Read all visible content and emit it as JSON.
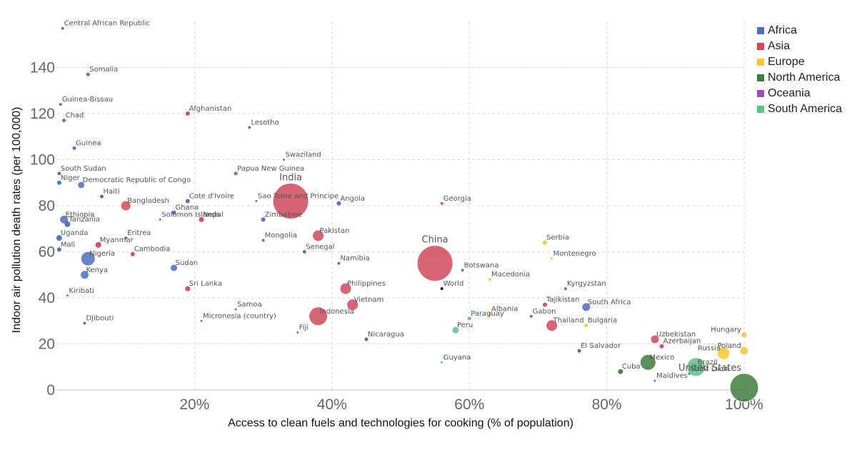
{
  "chart_data": {
    "type": "scatter",
    "title": "",
    "xlabel": "Access to clean fuels and technologies for cooking (% of population)",
    "ylabel": "Indoor air pollution death rates (per 100,000)",
    "xlim": [
      0,
      100
    ],
    "ylim": [
      0,
      160
    ],
    "x_ticks": [
      "20%",
      "40%",
      "60%",
      "80%",
      "100%"
    ],
    "y_ticks": [
      "0",
      "20",
      "40",
      "60",
      "80",
      "100",
      "120",
      "140"
    ],
    "grid": true,
    "legend_position": "top-right",
    "legend": [
      {
        "name": "Africa",
        "color": "#4C6EBE"
      },
      {
        "name": "Asia",
        "color": "#D1485A"
      },
      {
        "name": "Europe",
        "color": "#F7C831"
      },
      {
        "name": "North America",
        "color": "#3D7D3E"
      },
      {
        "name": "Oceania",
        "color": "#9B4EC1"
      },
      {
        "name": "South America",
        "color": "#5DC185"
      }
    ],
    "points": [
      {
        "label": "Central African Republic",
        "x": 0.8,
        "y": 157,
        "region": "Africa",
        "size": 2
      },
      {
        "label": "Somalia",
        "x": 4.5,
        "y": 137,
        "region": "Africa",
        "size": 2.5
      },
      {
        "label": "Guinea-Bissau",
        "x": 0.5,
        "y": 124,
        "region": "Africa",
        "size": 2
      },
      {
        "label": "Afghanistan",
        "x": 19,
        "y": 120,
        "region": "Asia",
        "size": 3
      },
      {
        "label": "Chad",
        "x": 1,
        "y": 117,
        "region": "Africa",
        "size": 2.5
      },
      {
        "label": "Lesotho",
        "x": 28,
        "y": 114,
        "region": "Africa",
        "size": 2
      },
      {
        "label": "Guinea",
        "x": 2.5,
        "y": 105,
        "region": "Africa",
        "size": 2.5
      },
      {
        "label": "Swaziland",
        "x": 33,
        "y": 100,
        "region": "Africa",
        "size": 1.5
      },
      {
        "label": "Papua New Guinea",
        "x": 26,
        "y": 94,
        "region": "Oceania",
        "size": 2.5
      },
      {
        "label": "South Sudan",
        "x": 0.3,
        "y": 94,
        "region": "Africa",
        "size": 2.5
      },
      {
        "label": "Niger",
        "x": 0.3,
        "y": 90,
        "region": "Africa",
        "size": 3
      },
      {
        "label": "Democratic Republic of Congo",
        "x": 3.5,
        "y": 89,
        "region": "Africa",
        "size": 5
      },
      {
        "label": "Haiti",
        "x": 6.5,
        "y": 84,
        "region": "North America",
        "size": 2.5
      },
      {
        "label": "India",
        "x": 34,
        "y": 82,
        "region": "Asia",
        "size": 25
      },
      {
        "label": "Bangladesh",
        "x": 10,
        "y": 80,
        "region": "Asia",
        "size": 7
      },
      {
        "label": "Cote d'Ivoire",
        "x": 19,
        "y": 82,
        "region": "Africa",
        "size": 3
      },
      {
        "label": "Sao Tome and Principe",
        "x": 29,
        "y": 82,
        "region": "Africa",
        "size": 1.5
      },
      {
        "label": "Angola",
        "x": 41,
        "y": 81,
        "region": "Africa",
        "size": 3
      },
      {
        "label": "Georgia",
        "x": 56,
        "y": 81,
        "region": "Asia",
        "size": 2
      },
      {
        "label": "Ghana",
        "x": 17,
        "y": 77,
        "region": "Africa",
        "size": 3
      },
      {
        "label": "Zimbabwe",
        "x": 30,
        "y": 74,
        "region": "Africa",
        "size": 3
      },
      {
        "label": "Ethiopia",
        "x": 1,
        "y": 74,
        "region": "Africa",
        "size": 6
      },
      {
        "label": "Solomon Islands",
        "x": 15,
        "y": 74,
        "region": "Oceania",
        "size": 1.5
      },
      {
        "label": "Tanzania",
        "x": 1.5,
        "y": 72,
        "region": "Africa",
        "size": 4
      },
      {
        "label": "Nepal",
        "x": 21,
        "y": 74,
        "region": "Asia",
        "size": 3.5
      },
      {
        "label": "Pakistan",
        "x": 38,
        "y": 67,
        "region": "Asia",
        "size": 8
      },
      {
        "label": "Uganda",
        "x": 0.3,
        "y": 66,
        "region": "Africa",
        "size": 4
      },
      {
        "label": "Eritrea",
        "x": 10,
        "y": 66,
        "region": "Africa",
        "size": 2
      },
      {
        "label": "Mongolia",
        "x": 30,
        "y": 65,
        "region": "Asia",
        "size": 2
      },
      {
        "label": "Myanmar",
        "x": 6,
        "y": 63,
        "region": "Asia",
        "size": 4
      },
      {
        "label": "Mali",
        "x": 0.3,
        "y": 61,
        "region": "Africa",
        "size": 3
      },
      {
        "label": "Cambodia",
        "x": 11,
        "y": 59,
        "region": "Asia",
        "size": 3
      },
      {
        "label": "Senegal",
        "x": 36,
        "y": 60,
        "region": "Africa",
        "size": 2.5
      },
      {
        "label": "Serbia",
        "x": 71,
        "y": 64,
        "region": "Europe",
        "size": 3
      },
      {
        "label": "Montenegro",
        "x": 72,
        "y": 57,
        "region": "Europe",
        "size": 1.5
      },
      {
        "label": "Nigeria",
        "x": 4.5,
        "y": 57,
        "region": "Africa",
        "size": 10
      },
      {
        "label": "Namibia",
        "x": 41,
        "y": 55,
        "region": "Africa",
        "size": 2
      },
      {
        "label": "China",
        "x": 55,
        "y": 55,
        "region": "Asia",
        "size": 25
      },
      {
        "label": "Sudan",
        "x": 17,
        "y": 53,
        "region": "Africa",
        "size": 5
      },
      {
        "label": "Botswana",
        "x": 59,
        "y": 52,
        "region": "Africa",
        "size": 2
      },
      {
        "label": "Kenya",
        "x": 4,
        "y": 50,
        "region": "Africa",
        "size": 6
      },
      {
        "label": "Macedonia",
        "x": 63,
        "y": 48,
        "region": "Europe",
        "size": 2
      },
      {
        "label": "Sri Lanka",
        "x": 19,
        "y": 44,
        "region": "Asia",
        "size": 3.5
      },
      {
        "label": "Philippines",
        "x": 42,
        "y": 44,
        "region": "Asia",
        "size": 8
      },
      {
        "label": "World",
        "x": 56,
        "y": 44,
        "region": "World",
        "size": 2
      },
      {
        "label": "Kyrgyzstan",
        "x": 74,
        "y": 44,
        "region": "Asia",
        "size": 2
      },
      {
        "label": "Kiribati",
        "x": 1.5,
        "y": 41,
        "region": "Oceania",
        "size": 1.5
      },
      {
        "label": "Vietnam",
        "x": 43,
        "y": 37,
        "region": "Asia",
        "size": 8
      },
      {
        "label": "Tajikistan",
        "x": 71,
        "y": 37,
        "region": "Asia",
        "size": 3
      },
      {
        "label": "South Africa",
        "x": 77,
        "y": 36,
        "region": "Africa",
        "size": 6
      },
      {
        "label": "Samoa",
        "x": 26,
        "y": 35,
        "region": "Oceania",
        "size": 1.5
      },
      {
        "label": "Albania",
        "x": 63,
        "y": 33,
        "region": "Europe",
        "size": 2.5
      },
      {
        "label": "Gabon",
        "x": 69,
        "y": 32,
        "region": "Africa",
        "size": 2
      },
      {
        "label": "Indonesia",
        "x": 38,
        "y": 32,
        "region": "Asia",
        "size": 13
      },
      {
        "label": "Paraguay",
        "x": 60,
        "y": 31,
        "region": "South America",
        "size": 2.5
      },
      {
        "label": "Micronesia (country)",
        "x": 21,
        "y": 30,
        "region": "Oceania",
        "size": 1.5
      },
      {
        "label": "Djibouti",
        "x": 4,
        "y": 29,
        "region": "Africa",
        "size": 2
      },
      {
        "label": "Thailand",
        "x": 72,
        "y": 28,
        "region": "Asia",
        "size": 8
      },
      {
        "label": "Bulgaria",
        "x": 77,
        "y": 28,
        "region": "Europe",
        "size": 2.5
      },
      {
        "label": "Peru",
        "x": 58,
        "y": 26,
        "region": "South America",
        "size": 5
      },
      {
        "label": "Fiji",
        "x": 35,
        "y": 25,
        "region": "Oceania",
        "size": 1.5
      },
      {
        "label": "Nicaragua",
        "x": 45,
        "y": 22,
        "region": "North America",
        "size": 2.5
      },
      {
        "label": "Uzbekistan",
        "x": 87,
        "y": 22,
        "region": "Asia",
        "size": 6
      },
      {
        "label": "Hungary",
        "x": 100,
        "y": 24,
        "region": "Europe",
        "size": 3.5
      },
      {
        "label": "Azerbaijan",
        "x": 88,
        "y": 19,
        "region": "Asia",
        "size": 3
      },
      {
        "label": "Poland",
        "x": 100,
        "y": 17,
        "region": "Europe",
        "size": 6
      },
      {
        "label": "El Salvador",
        "x": 76,
        "y": 17,
        "region": "North America",
        "size": 2.5
      },
      {
        "label": "Russia",
        "x": 97,
        "y": 16,
        "region": "Europe",
        "size": 9
      },
      {
        "label": "Guyana",
        "x": 56,
        "y": 12,
        "region": "South America",
        "size": 1.5
      },
      {
        "label": "Mexico",
        "x": 86,
        "y": 12,
        "region": "North America",
        "size": 11
      },
      {
        "label": "Brazil",
        "x": 93,
        "y": 10,
        "region": "South America",
        "size": 13
      },
      {
        "label": "Cuba",
        "x": 82,
        "y": 8,
        "region": "North America",
        "size": 3.5
      },
      {
        "label": "Saint Lucia",
        "x": 92,
        "y": 7,
        "region": "North America",
        "size": 1.5
      },
      {
        "label": "United States",
        "x": 100,
        "y": 1,
        "region": "North America",
        "size": 20
      },
      {
        "label": "Maldives",
        "x": 87,
        "y": 4,
        "region": "Asia",
        "size": 1.5
      }
    ]
  }
}
